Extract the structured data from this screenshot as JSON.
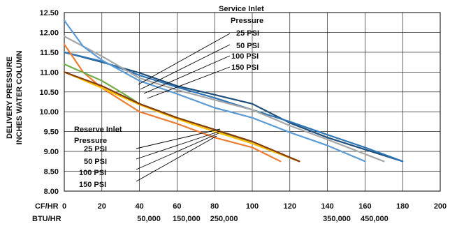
{
  "chart_data": {
    "type": "line",
    "ylabel": [
      "DELIVERY PRESSURE",
      "INCHES WATER COLUMN"
    ],
    "xlabel_cfhr": "CF/HR",
    "xlabel_btuhr": "BTU/HR",
    "x_ticks": [
      "0",
      "20",
      "40",
      "60",
      "80",
      "100",
      "120",
      "140",
      "160",
      "180",
      "200"
    ],
    "y_ticks": [
      "8.00",
      "8.50",
      "9.00",
      "9.50",
      "10.00",
      "10.50",
      "11.00",
      "11.50",
      "12.00",
      "12.50"
    ],
    "btu_ticks": [
      {
        "label": "50,000",
        "at": 45
      },
      {
        "label": "150,000",
        "at": 65
      },
      {
        "label": "250,000",
        "at": 85
      },
      {
        "label": "350,000",
        "at": 145
      },
      {
        "label": "450,000",
        "at": 165
      }
    ],
    "xlim": [
      0,
      200
    ],
    "ylim": [
      8.0,
      12.5
    ],
    "grid": true,
    "service_annotation": {
      "title": [
        "Service Inlet",
        "Pressure"
      ],
      "items": [
        "25 PSI",
        "50 PSI",
        "100 PSI",
        "150 PSI"
      ]
    },
    "reserve_annotation": {
      "title": [
        "Reserve Inlet",
        "Pressure"
      ],
      "items": [
        "25 PSI",
        "50 PSI",
        "100 PSI",
        "150 PSI"
      ]
    },
    "series": [
      {
        "group": "service",
        "color": "#1f4e79",
        "x": [
          0,
          20,
          40,
          60,
          80,
          100,
          120,
          140,
          160,
          180
        ],
        "y": [
          11.5,
          11.25,
          10.98,
          10.65,
          10.43,
          10.2,
          9.72,
          9.35,
          9.05,
          8.75
        ]
      },
      {
        "group": "service",
        "color": "#2e75b6",
        "x": [
          0,
          20,
          40,
          60,
          80,
          100,
          120,
          140,
          160,
          180
        ],
        "y": [
          11.5,
          11.27,
          10.92,
          10.62,
          10.35,
          10.05,
          9.75,
          9.42,
          9.1,
          8.75
        ]
      },
      {
        "group": "service",
        "color": "#a6a6a6",
        "x": [
          0,
          20,
          40,
          60,
          80,
          100,
          120,
          140,
          170
        ],
        "y": [
          11.9,
          11.4,
          10.85,
          10.55,
          10.3,
          10.05,
          9.65,
          9.3,
          8.75
        ]
      },
      {
        "group": "service",
        "color": "#5b9bd5",
        "x": [
          0,
          10,
          20,
          40,
          60,
          80,
          100,
          120,
          140,
          160
        ],
        "y": [
          12.3,
          11.65,
          11.3,
          10.78,
          10.45,
          10.1,
          9.85,
          9.48,
          9.15,
          8.75
        ]
      },
      {
        "group": "reserve",
        "color": "#ed7d31",
        "x": [
          0,
          10,
          20,
          40,
          60,
          80,
          100,
          115
        ],
        "y": [
          11.7,
          11.0,
          10.6,
          10.0,
          9.7,
          9.35,
          9.1,
          8.75
        ]
      },
      {
        "group": "reserve",
        "color": "#70ad47",
        "x": [
          0,
          20,
          30,
          40,
          60,
          80,
          100,
          125
        ],
        "y": [
          11.2,
          10.78,
          10.5,
          10.2,
          9.85,
          9.55,
          9.2,
          8.75
        ]
      },
      {
        "group": "reserve",
        "color": "#ffc000",
        "x": [
          0,
          20,
          40,
          60,
          80,
          100,
          125
        ],
        "y": [
          11.0,
          10.6,
          10.18,
          9.82,
          9.5,
          9.2,
          8.75
        ]
      },
      {
        "group": "reserve",
        "color": "#843c0c",
        "x": [
          0,
          20,
          40,
          60,
          80,
          100,
          125
        ],
        "y": [
          11.0,
          10.65,
          10.2,
          9.85,
          9.55,
          9.25,
          8.75
        ]
      }
    ]
  }
}
